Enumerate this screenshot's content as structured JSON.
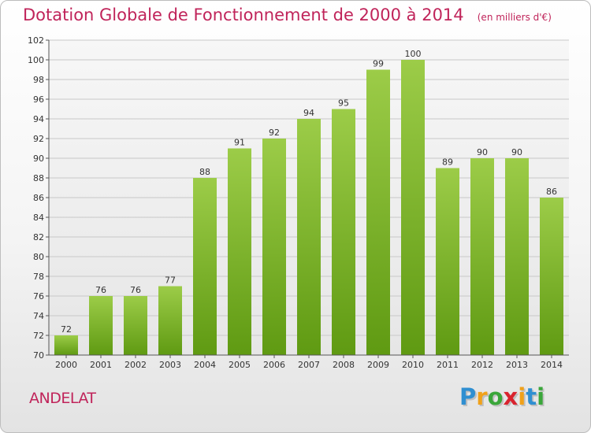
{
  "chart_data": {
    "type": "bar",
    "title": "Dotation Globale de Fonctionnement de 2000 à 2014",
    "subtitle": "(en milliers d'€)",
    "categories": [
      "2000",
      "2001",
      "2002",
      "2003",
      "2004",
      "2005",
      "2006",
      "2007",
      "2008",
      "2009",
      "2010",
      "2011",
      "2012",
      "2013",
      "2014"
    ],
    "values": [
      72,
      76,
      76,
      77,
      88,
      91,
      92,
      94,
      95,
      99,
      100,
      89,
      90,
      90,
      86
    ],
    "ylim": [
      70,
      102
    ],
    "yticks": [
      70,
      72,
      74,
      76,
      78,
      80,
      82,
      84,
      86,
      88,
      90,
      92,
      94,
      96,
      98,
      100,
      102
    ],
    "xlabel": "",
    "ylabel": "",
    "grid": true,
    "colors": {
      "bar_top": "#9ccc48",
      "bar_bottom": "#5f9a12",
      "title": "#c0245a",
      "grid": "#c8c8c8"
    }
  },
  "commune": "ANDELAT",
  "logo": {
    "text": "Proxiti",
    "letter_colors": [
      "#2f8fd1",
      "#f0a11a",
      "#3aa63a",
      "#d9232e",
      "#f0a11a",
      "#2f8fd1",
      "#3aa63a"
    ]
  }
}
